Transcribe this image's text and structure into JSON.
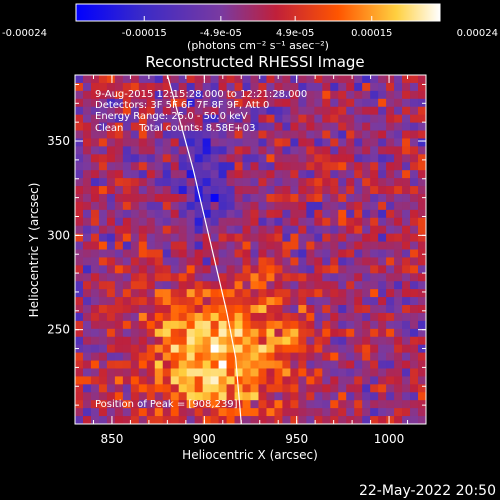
{
  "chart_data": {
    "type": "heatmap",
    "title": "Reconstructed RHESSI Image",
    "xlabel": "Heliocentric X (arcsec)",
    "ylabel": "Heliocentric Y (arcsec)",
    "xlim": [
      830,
      1020
    ],
    "ylim": [
      200,
      385
    ],
    "x_ticks": [
      "850",
      "900",
      "950",
      "1000"
    ],
    "x_tick_values": [
      850,
      900,
      950,
      1000
    ],
    "y_ticks": [
      "250",
      "300",
      "350"
    ],
    "y_tick_values": [
      250,
      300,
      350
    ],
    "colorbar": {
      "range": [
        -0.00024,
        0.00024
      ],
      "tick_labels": [
        "-0.00024",
        "-0.00015",
        "-4.9e-05",
        "4.9e-05",
        "0.00015",
        "0.00024"
      ],
      "tick_values": [
        -0.00024,
        -0.00015,
        -4.9e-05,
        4.9e-05,
        0.00015,
        0.00024
      ],
      "units": "(photons cm⁻² s⁻¹ asec⁻²)",
      "colors": [
        "#0000ff",
        "#3a2ac8",
        "#7a3aa0",
        "#c0203a",
        "#ff5500",
        "#ffd040",
        "#ffffff"
      ]
    },
    "annotations": [
      "9-Aug-2015 12:15:28.000 to 12:21:28.000",
      "Detectors: 3F 5F 6F 7F 8F 9F, Att 0",
      "Energy Range: 25.0 - 50.0 keV",
      "Clean     Total counts: 8.58E+03"
    ],
    "peak_label": "Position of Peak = [908,239]",
    "peak": [
      908,
      239
    ],
    "limb_curve_x": [
      880,
      887,
      894,
      900,
      906,
      912,
      917,
      920
    ],
    "limb_curve_y": [
      385,
      360,
      335,
      310,
      285,
      260,
      235,
      200
    ]
  },
  "timestamp": "22-May-2022 20:50"
}
